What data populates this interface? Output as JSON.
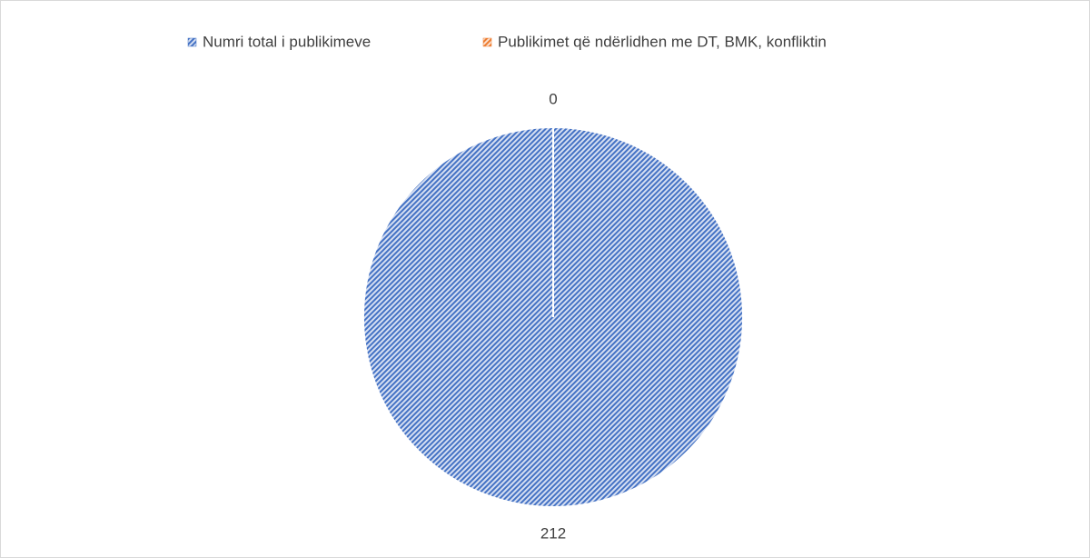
{
  "chart_data": {
    "type": "pie",
    "categories": [
      "Numri total i publikimeve",
      "Publikimet që ndërlidhen me DT, BMK, konfliktin"
    ],
    "values": [
      212,
      0
    ],
    "colors": [
      "#4472c4",
      "#ed7d31"
    ],
    "legend": "top"
  }
}
